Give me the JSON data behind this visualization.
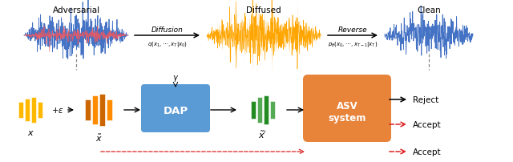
{
  "bg_color": "#ffffff",
  "fig_width": 6.4,
  "fig_height": 2.03,
  "dpi": 100,
  "waveform_adv_main": "#4472C4",
  "waveform_adv_accent": "#FF5555",
  "waveform_diffused": "#FFA500",
  "waveform_clean": "#4472C4",
  "box_dap_color": "#5B9BD5",
  "box_asv_color": "#E8833A",
  "bar_yellow": "#FFB800",
  "bar_orange_dark": "#CC6600",
  "bar_orange_light": "#FF8C00",
  "bar_green_dark": "#228B22",
  "bar_green_light": "#55AA55",
  "arrow_color": "#333333",
  "dash_red": "#DD2222",
  "text_adversarial": "Adversarial",
  "text_diffused": "Diffused",
  "text_clean": "Clean",
  "text_diffusion": "Diffusion",
  "text_diff_formula": "$q(x_1,\\cdots,x_T|x_0)$",
  "text_reverse": "Reverse",
  "text_rev_formula": "$p_\\theta(x_0,\\cdots,x_{T-1}|x_T)$",
  "text_x": "$x$",
  "text_xt": "$\\tilde{x}$",
  "text_xtp": "$\\tilde{x}'$",
  "text_eps": "$+\\epsilon$",
  "text_gamma": "$\\gamma$",
  "text_dap": "DAP",
  "text_asv": "ASV\nsystem",
  "text_reject": "Reject",
  "text_accept": "Accept"
}
